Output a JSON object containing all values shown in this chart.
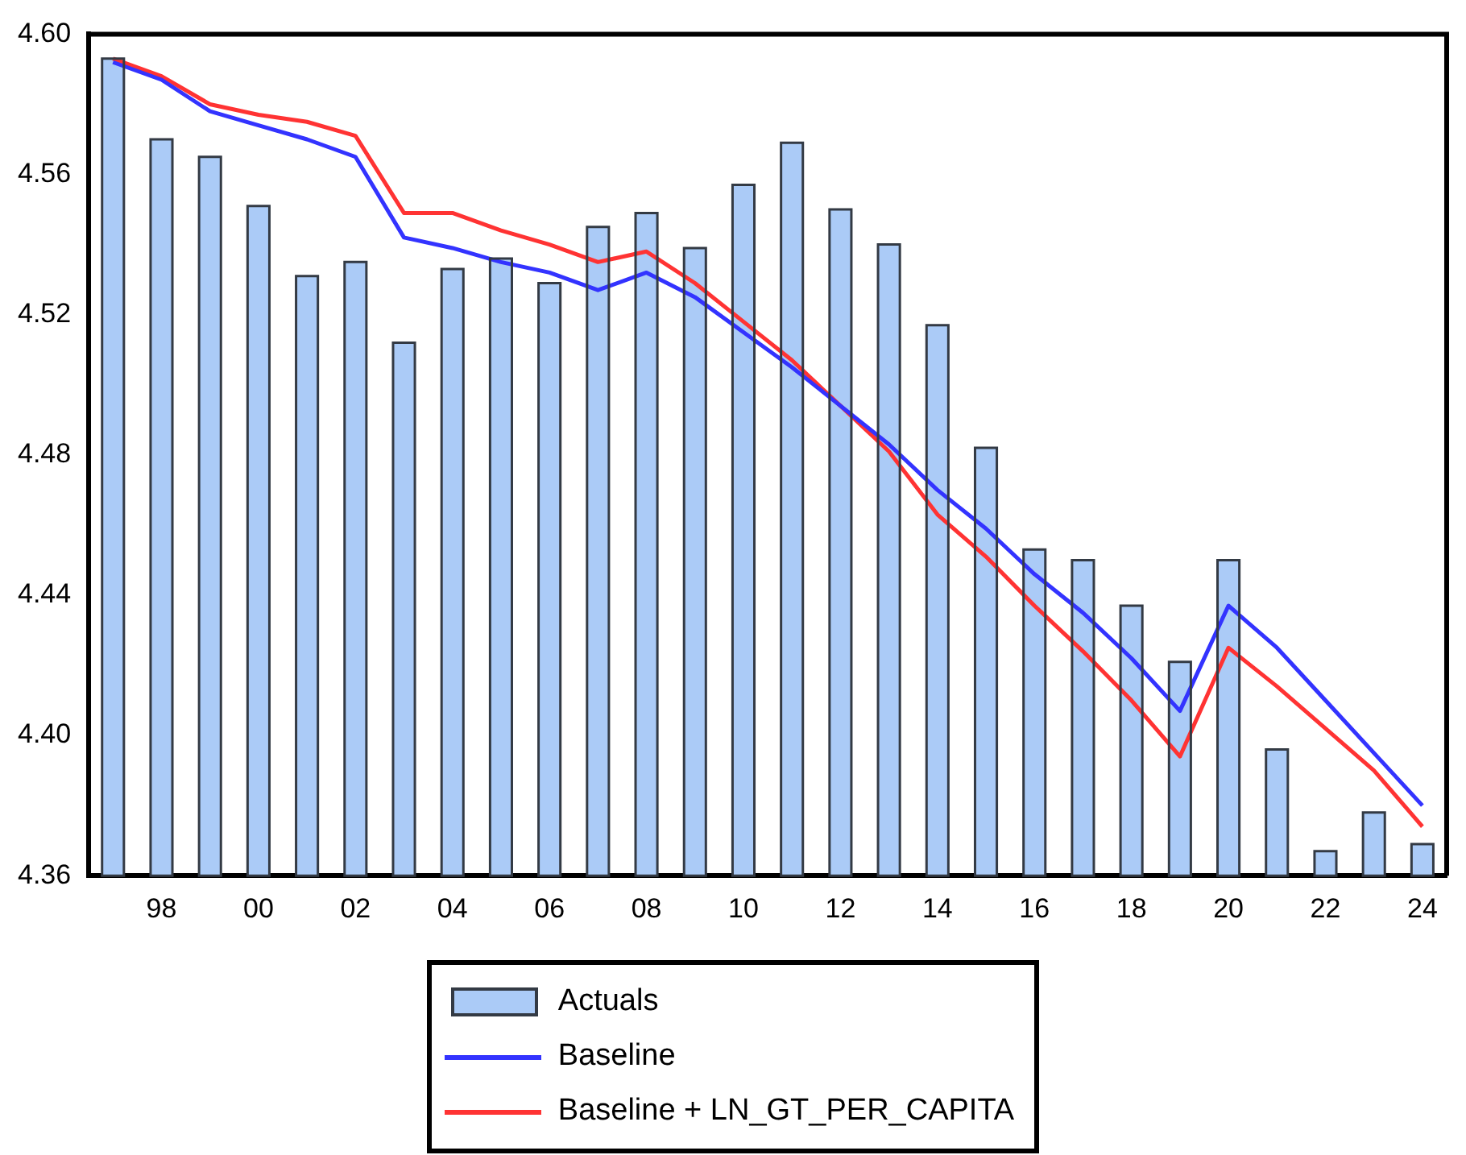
{
  "chart_data": {
    "type": "bar",
    "categories": [
      null,
      "98",
      null,
      "00",
      null,
      "02",
      null,
      "04",
      null,
      "06",
      null,
      "08",
      null,
      "10",
      null,
      "12",
      null,
      "14",
      null,
      "16",
      null,
      "18",
      null,
      "20",
      null,
      "22",
      null,
      "24"
    ],
    "series": [
      {
        "name": "Actuals",
        "color": "#abcbf7",
        "values": [
          4.593,
          4.57,
          4.565,
          4.551,
          4.531,
          4.535,
          4.512,
          4.533,
          4.536,
          4.529,
          4.545,
          4.549,
          4.539,
          4.557,
          4.569,
          4.55,
          4.54,
          4.517,
          4.482,
          4.453,
          4.45,
          4.437,
          4.421,
          4.45,
          4.396,
          4.367,
          4.378,
          4.369
        ]
      },
      {
        "name": "Baseline",
        "type": "line",
        "color": "#3333ff",
        "values": [
          4.592,
          4.587,
          4.578,
          4.574,
          4.57,
          4.565,
          4.542,
          4.539,
          4.535,
          4.532,
          4.527,
          4.532,
          4.525,
          4.515,
          4.505,
          4.494,
          4.483,
          4.47,
          4.459,
          4.446,
          4.435,
          4.422,
          4.407,
          4.437,
          4.425,
          4.41,
          4.395,
          4.38
        ]
      },
      {
        "name": "Baseline + LN_GT_PER_CAPITA",
        "type": "line",
        "color": "#ff3333",
        "values": [
          4.593,
          4.588,
          4.58,
          4.577,
          4.575,
          4.571,
          4.549,
          4.549,
          4.544,
          4.54,
          4.535,
          4.538,
          4.529,
          4.518,
          4.507,
          4.494,
          4.481,
          4.463,
          4.451,
          4.437,
          4.424,
          4.41,
          4.394,
          4.425,
          4.414,
          4.402,
          4.39,
          4.374
        ]
      }
    ],
    "ylim": [
      4.36,
      4.6
    ],
    "yticks": [
      {
        "value": 4.36,
        "label": "4.36"
      },
      {
        "value": 4.4,
        "label": "4.40"
      },
      {
        "value": 4.44,
        "label": "4.44"
      },
      {
        "value": 4.48,
        "label": "4.48"
      },
      {
        "value": 4.52,
        "label": "4.52"
      },
      {
        "value": 4.56,
        "label": "4.56"
      },
      {
        "value": 4.6,
        "label": "4.60"
      }
    ],
    "grid": false,
    "legend": "bottom",
    "marker": "none"
  }
}
